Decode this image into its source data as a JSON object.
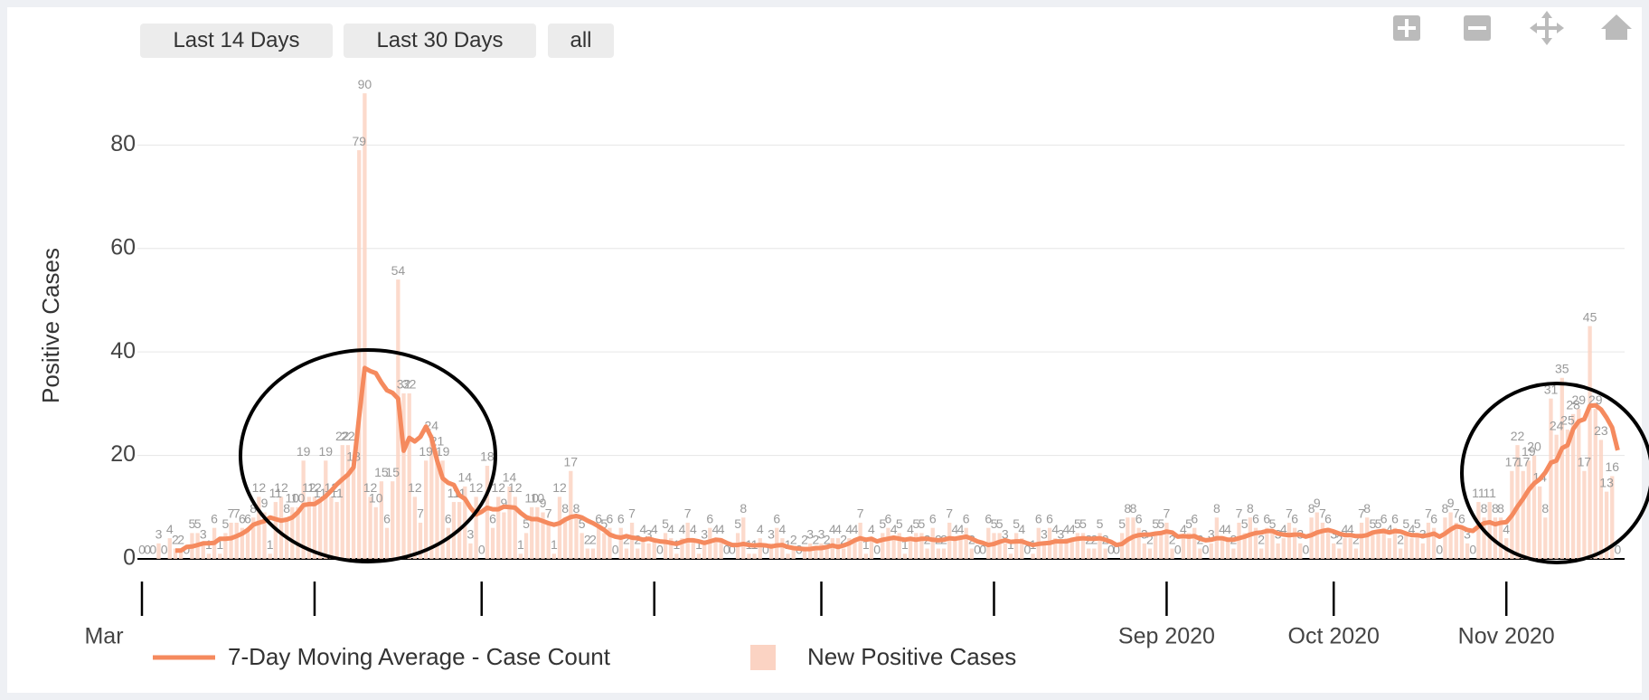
{
  "buttons": [
    "Last 14 Days",
    "Last 30 Days",
    "all"
  ],
  "chart_data": {
    "type": "bar",
    "yaxis_title": "Positive Cases",
    "ylim": [
      0,
      93
    ],
    "yticks": [
      0,
      20,
      40,
      60,
      80
    ],
    "grid": true,
    "xticks": [
      {
        "value": "2020-03",
        "label": "Mar"
      },
      {
        "value": "2020-04",
        "label": null
      },
      {
        "value": "2020-05",
        "label": null
      },
      {
        "value": "2020-06",
        "label": null
      },
      {
        "value": "2020-07",
        "label": null
      },
      {
        "value": "2020-08",
        "label": null
      },
      {
        "value": "2020-09",
        "label": "Sep 2020"
      },
      {
        "value": "2020-10",
        "label": "Oct 2020"
      },
      {
        "value": "2020-11",
        "label": "Nov 2020"
      }
    ],
    "series": [
      {
        "name": "7-Day Moving Average - Case Count",
        "type": "line",
        "color": "#f58a5e",
        "values": [
          null,
          null,
          null,
          null,
          null,
          null,
          1.6,
          1.6,
          2.3,
          2.4,
          2.7,
          3,
          3,
          3.1,
          3.9,
          3.9,
          4,
          4.4,
          4.9,
          5.6,
          6.6,
          7,
          7.3,
          8,
          7.7,
          7.4,
          7.6,
          8,
          9,
          10.4,
          10.6,
          10.6,
          11.3,
          12.1,
          13.2,
          14.4,
          15.4,
          16.3,
          17.7,
          27.4,
          36.9,
          36.3,
          35.9,
          34.1,
          32.6,
          32.1,
          31,
          20.9,
          23.4,
          22.7,
          23.6,
          25.6,
          23.4,
          19,
          15.6,
          14.7,
          14.3,
          12.3,
          11.6,
          9.9,
          8.6,
          9.1,
          9.9,
          9.6,
          9.6,
          10.1,
          10,
          9.9,
          8.9,
          8.1,
          7.7,
          7.7,
          7.3,
          6.9,
          6.6,
          6.9,
          7.6,
          8.1,
          8.3,
          8,
          7.4,
          6.9,
          6.3,
          5.6,
          4.7,
          4.3,
          4.1,
          4.4,
          4.1,
          4,
          3.7,
          3.9,
          3.6,
          3.4,
          3.3,
          3.1,
          2.9,
          3.3,
          3.6,
          3.6,
          3.4,
          3.1,
          3.4,
          3.7,
          3.6,
          3.1,
          2.7,
          2.7,
          2.9,
          2.7,
          2.6,
          2.7,
          2.6,
          2.4,
          2.6,
          2.7,
          2.3,
          2.1,
          2,
          1.9,
          1.9,
          2.1,
          2.1,
          2.3,
          2.6,
          2.3,
          2.6,
          3,
          3.6,
          4,
          3.7,
          3.9,
          3.4,
          3.7,
          3.9,
          4.1,
          3.9,
          3.7,
          3.9,
          3.7,
          3.9,
          3.9,
          3.7,
          3.6,
          3.7,
          4,
          3.9,
          4.1,
          4.3,
          3.9,
          3.4,
          3.1,
          2.7,
          2.9,
          3.3,
          3.6,
          3.3,
          3.4,
          3.4,
          3,
          2.7,
          2.9,
          3,
          3.1,
          3.4,
          3.4,
          3.4,
          3.7,
          3.9,
          4,
          3.9,
          3.9,
          4,
          3.7,
          3.3,
          2.7,
          2.9,
          3.7,
          4.3,
          4.6,
          4.7,
          4.7,
          4.9,
          5,
          5.3,
          5.1,
          4.3,
          4.4,
          4.3,
          4.4,
          3.9,
          3.6,
          3.7,
          4,
          4,
          3.7,
          3.7,
          4,
          4.3,
          4.7,
          5,
          5.1,
          5.4,
          5.4,
          4.9,
          4.7,
          4.6,
          4.7,
          4.7,
          4.3,
          4.6,
          5.1,
          5.4,
          5.6,
          5.3,
          4.9,
          4.6,
          4.6,
          4.4,
          4.4,
          4.6,
          5.1,
          5.3,
          5.4,
          5.1,
          5.4,
          5.3,
          4.9,
          4.6,
          4.6,
          4.4,
          4.6,
          4.9,
          4.3,
          4.9,
          5.7,
          6.3,
          6.1,
          5.6,
          5.4,
          6.3,
          6.9,
          7.1,
          6.7,
          7,
          7.1,
          8.4,
          10.1,
          11.6,
          13.3,
          14.6,
          15.4,
          16.7,
          18.6,
          19,
          21.4,
          22,
          25.1,
          26.6,
          27,
          29.6,
          29.7,
          28.9,
          27.3,
          25.4,
          21
        ]
      },
      {
        "name": "New Positive Cases",
        "type": "bar",
        "color": "#fbd3c3",
        "values": [
          0,
          0,
          0,
          3,
          0,
          4,
          2,
          2,
          0,
          5,
          5,
          3,
          1,
          6,
          1,
          5,
          7,
          7,
          6,
          6,
          8,
          12,
          9,
          1,
          11,
          12,
          8,
          10,
          10,
          19,
          12,
          12,
          11,
          19,
          12,
          11,
          22,
          22,
          18,
          79,
          90,
          12,
          10,
          15,
          6,
          15,
          54,
          32,
          32,
          12,
          7,
          19,
          24,
          21,
          19,
          6,
          11,
          11,
          14,
          3,
          12,
          0,
          18,
          6,
          12,
          9,
          14,
          12,
          1,
          5,
          10,
          10,
          9,
          7,
          1,
          12,
          8,
          17,
          8,
          5,
          2,
          2,
          6,
          5,
          6,
          0,
          6,
          2,
          7,
          2,
          4,
          3,
          4,
          0,
          5,
          4,
          1,
          4,
          7,
          4,
          1,
          3,
          6,
          4,
          4,
          0,
          0,
          5,
          8,
          1,
          1,
          4,
          0,
          3,
          6,
          4,
          1,
          2,
          0,
          2,
          3,
          2,
          3,
          2,
          4,
          4,
          2,
          4,
          4,
          7,
          1,
          4,
          0,
          5,
          6,
          4,
          5,
          1,
          4,
          5,
          5,
          2,
          6,
          2,
          2,
          7,
          4,
          4,
          6,
          2,
          0,
          0,
          6,
          5,
          5,
          3,
          1,
          5,
          4,
          0,
          1,
          6,
          3,
          6,
          4,
          3,
          4,
          4,
          5,
          5,
          2,
          2,
          5,
          2,
          0,
          0,
          5,
          8,
          8,
          6,
          3,
          2,
          5,
          5,
          7,
          2,
          0,
          4,
          5,
          6,
          2,
          0,
          3,
          8,
          4,
          4,
          2,
          7,
          5,
          8,
          6,
          2,
          6,
          5,
          3,
          4,
          7,
          6,
          3,
          0,
          8,
          9,
          7,
          6,
          3,
          2,
          4,
          4,
          2,
          7,
          8,
          5,
          5,
          6,
          4,
          6,
          2,
          5,
          4,
          5,
          3,
          7,
          6,
          0,
          8,
          9,
          7,
          6,
          3,
          0,
          11,
          8,
          11,
          8,
          8,
          4,
          17,
          22,
          17,
          19,
          20,
          14,
          8,
          31,
          24,
          35,
          25,
          28,
          29,
          17,
          45,
          29,
          23,
          13,
          16,
          0
        ]
      }
    ]
  }
}
